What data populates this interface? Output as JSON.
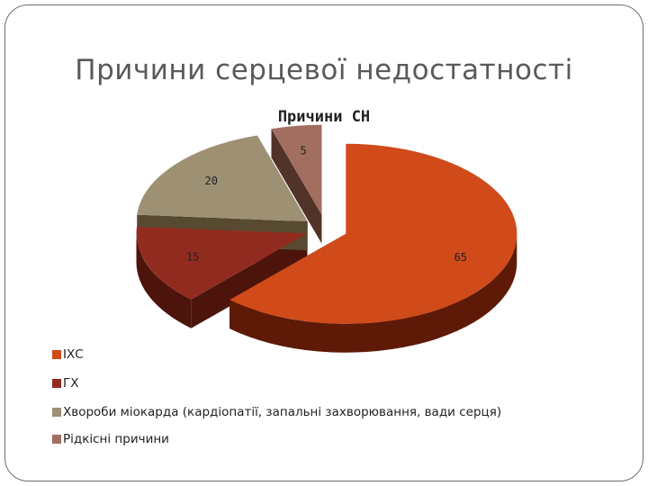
{
  "slide": {
    "title": "Причини серцевої недостатності"
  },
  "chart_data": {
    "type": "pie",
    "title": "Причини СН",
    "three_d": true,
    "categories": [
      "ІХС",
      "ГХ",
      "Хвороби міокарда (кардіопатії, запальні захворювання, вади серця)",
      "Рідкісні причини"
    ],
    "values": [
      65,
      15,
      20,
      5
    ],
    "data_labels": [
      "65",
      "15",
      "20",
      "5"
    ],
    "colors": {
      "top": [
        "#d04a1a",
        "#922b1f",
        "#9e9073",
        "#a26e60"
      ],
      "side": [
        "#5e1a07",
        "#4c140b",
        "#584a30",
        "#52332a"
      ]
    },
    "legend_position": "bottom-left",
    "exploded": true
  }
}
